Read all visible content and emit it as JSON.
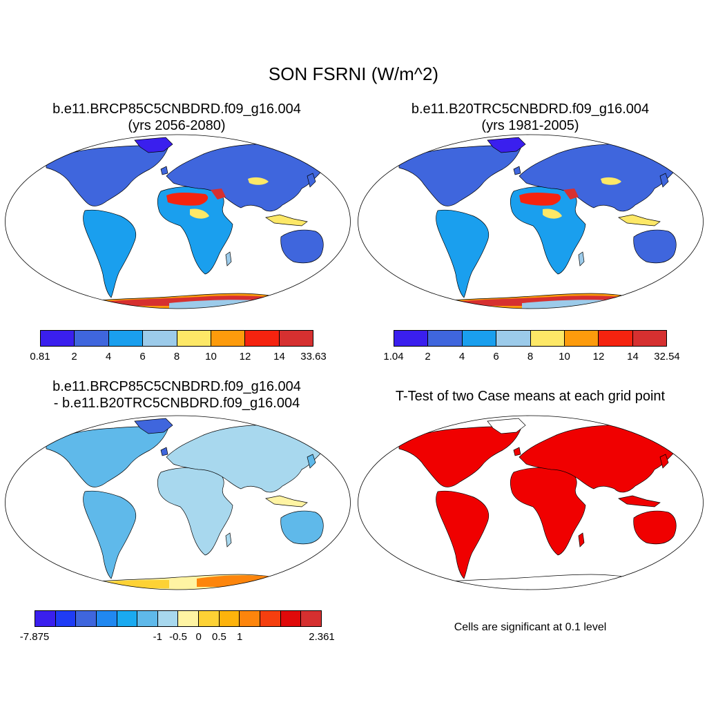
{
  "title": "SON FSRNI (W/m^2)",
  "panels": {
    "top_left": {
      "title_line1": "b.e11.BRCP85C5CNBDRD.f09_g16.004",
      "title_line2": "(yrs 2056-2080)"
    },
    "top_right": {
      "title_line1": "b.e11.B20TRC5CNBDRD.f09_g16.004",
      "title_line2": "(yrs 1981-2005)"
    },
    "bottom_left": {
      "title_line1": "b.e11.BRCP85C5CNBDRD.f09_g16.004",
      "title_line2": "- b.e11.B20TRC5CNBDRD.f09_g16.004"
    },
    "bottom_right": {
      "title_line1": "T-Test of two Case means at each grid point",
      "note": "Cells are significant at 0.1 level"
    }
  },
  "colorbars": {
    "top_left": {
      "labels": [
        "0.81",
        "2",
        "4",
        "6",
        "8",
        "10",
        "12",
        "14",
        "33.63"
      ],
      "colors": [
        "#3a1fee",
        "#3f66dd",
        "#1a9fee",
        "#9ccbea",
        "#fde867",
        "#fd9b0c",
        "#f5230f",
        "#d63030"
      ]
    },
    "top_right": {
      "labels": [
        "1.04",
        "2",
        "4",
        "6",
        "8",
        "10",
        "12",
        "14",
        "32.54"
      ],
      "colors": [
        "#3a1fee",
        "#3f66dd",
        "#1a9fee",
        "#9ccbea",
        "#fde867",
        "#fd9b0c",
        "#f5230f",
        "#d63030"
      ]
    },
    "bottom_left": {
      "labels": [
        "-7.875",
        "-1",
        "-0.5",
        "0",
        "0.5",
        "1",
        "2.361"
      ],
      "colors": [
        "#3a1fee",
        "#1f3cf5",
        "#3f66dd",
        "#2188f0",
        "#1aaaf0",
        "#5fb9ea",
        "#a8d8ee",
        "#fff4a3",
        "#fdd235",
        "#fdb30c",
        "#fd850c",
        "#f53f0f",
        "#e00a0a",
        "#d63030"
      ]
    }
  },
  "map_colors": {
    "ocean": "#ffffff",
    "outline": "#000000",
    "significant": "#f00000"
  }
}
